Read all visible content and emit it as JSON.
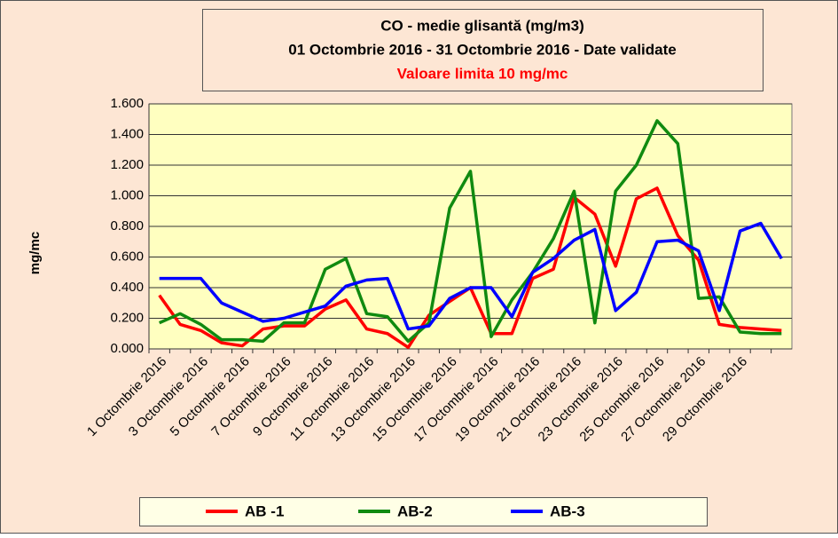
{
  "chart_data": {
    "type": "line",
    "title": "CO - medie glisantă (mg/m3)",
    "subtitle": "01 Octombrie 2016 -  31 Octombrie 2016 - Date validate",
    "annotation": "Valoare limita 10 mg/mc",
    "y_label": "mg/mc",
    "categories": [
      "1 Octombrie 2016",
      null,
      "3 Octombrie 2016",
      null,
      "5 Octombrie 2016",
      null,
      "7 Octombrie 2016",
      null,
      "9 Octombrie 2016",
      null,
      "11 Octombrie 2016",
      null,
      "13 Octombrie 2016",
      null,
      "15 Octombrie 2016",
      null,
      "17 Octombrie 2016",
      null,
      "19 Octombrie 2016",
      null,
      "21 Octombrie 2016",
      null,
      "23 Octombrie 2016",
      null,
      "25 Octombrie 2016",
      null,
      "27 Octombrie 2016",
      null,
      "29 Octombrie 2016",
      null,
      null
    ],
    "series": [
      {
        "name": "AB -1",
        "color": "#ff0000",
        "values": [
          0.35,
          0.16,
          0.12,
          0.04,
          0.02,
          0.13,
          0.15,
          0.15,
          0.26,
          0.32,
          0.13,
          0.1,
          0.01,
          0.22,
          0.31,
          0.4,
          0.1,
          0.1,
          0.46,
          0.52,
          0.99,
          0.88,
          0.54,
          0.98,
          1.05,
          0.74,
          0.58,
          0.16,
          0.14,
          0.13,
          0.12
        ]
      },
      {
        "name": "AB-2",
        "color": "#108a10",
        "values": [
          0.17,
          0.23,
          0.16,
          0.06,
          0.06,
          0.05,
          0.17,
          0.17,
          0.52,
          0.59,
          0.23,
          0.21,
          0.05,
          0.17,
          0.92,
          1.16,
          0.08,
          0.32,
          0.5,
          0.72,
          1.03,
          0.17,
          1.03,
          1.2,
          1.49,
          1.34,
          0.33,
          0.34,
          0.11,
          0.1,
          0.1
        ]
      },
      {
        "name": "AB-3",
        "color": "#0000ff",
        "values": [
          0.46,
          0.46,
          0.46,
          0.3,
          0.24,
          0.18,
          0.2,
          0.24,
          0.28,
          0.41,
          0.45,
          0.46,
          0.13,
          0.15,
          0.33,
          0.4,
          0.4,
          0.21,
          0.5,
          0.59,
          0.71,
          0.78,
          0.25,
          0.37,
          0.7,
          0.71,
          0.64,
          0.25,
          0.77,
          0.82,
          0.59
        ]
      }
    ],
    "ylim": [
      0,
      1.6
    ],
    "yticks": [
      {
        "value": 0,
        "label": "0.000"
      },
      {
        "value": 0.2,
        "label": "0.200"
      },
      {
        "value": 0.4,
        "label": "0.400"
      },
      {
        "value": 0.6,
        "label": "0.600"
      },
      {
        "value": 0.8,
        "label": "0.800"
      },
      {
        "value": 1,
        "label": "1.000"
      },
      {
        "value": 1.2,
        "label": "1.200"
      },
      {
        "value": 1.4,
        "label": "1.400"
      },
      {
        "value": 1.6,
        "label": "1.600"
      }
    ],
    "grid": true
  }
}
